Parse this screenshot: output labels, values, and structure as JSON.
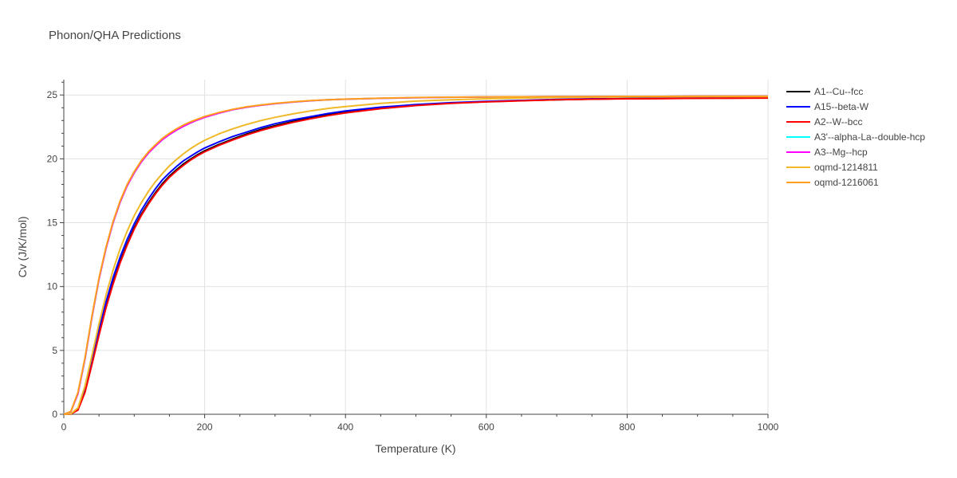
{
  "chart_data": {
    "type": "line",
    "title": "Phonon/QHA Predictions",
    "xlabel": "Temperature (K)",
    "ylabel": "Cv (J/K/mol)",
    "xlim": [
      0,
      1000
    ],
    "ylim": [
      0,
      26.2
    ],
    "xticks": [
      0,
      200,
      400,
      600,
      800,
      1000
    ],
    "yticks": [
      0,
      5,
      10,
      15,
      20,
      25
    ],
    "grid": true,
    "legend_position": "right",
    "x": [
      0,
      10,
      20,
      30,
      40,
      50,
      60,
      70,
      80,
      90,
      100,
      110,
      120,
      130,
      140,
      150,
      160,
      170,
      180,
      190,
      200,
      220,
      240,
      260,
      280,
      300,
      325,
      350,
      375,
      400,
      450,
      500,
      550,
      600,
      650,
      700,
      750,
      800,
      850,
      900,
      950,
      1000
    ],
    "series": [
      {
        "name": "A1--Cu--fcc",
        "color": "#000000",
        "values": [
          0,
          0.02,
          0.35,
          1.75,
          3.95,
          6.3,
          8.45,
          10.3,
          11.95,
          13.35,
          14.6,
          15.65,
          16.55,
          17.35,
          18.05,
          18.65,
          19.15,
          19.6,
          19.98,
          20.33,
          20.63,
          21.12,
          21.55,
          21.95,
          22.3,
          22.6,
          22.92,
          23.2,
          23.45,
          23.65,
          23.98,
          24.2,
          24.37,
          24.48,
          24.56,
          24.63,
          24.68,
          24.71,
          24.73,
          24.75,
          24.76,
          24.77
        ]
      },
      {
        "name": "A15--beta-W",
        "color": "#0000ff",
        "values": [
          0,
          0.03,
          0.42,
          1.95,
          4.2,
          6.6,
          8.8,
          10.7,
          12.3,
          13.7,
          14.9,
          15.95,
          16.85,
          17.65,
          18.35,
          18.9,
          19.4,
          19.85,
          20.2,
          20.55,
          20.85,
          21.32,
          21.75,
          22.1,
          22.45,
          22.75,
          23.05,
          23.3,
          23.55,
          23.75,
          24.05,
          24.25,
          24.4,
          24.5,
          24.58,
          24.65,
          24.7,
          24.73,
          24.75,
          24.77,
          24.78,
          24.79
        ]
      },
      {
        "name": "A2--W--bcc",
        "color": "#ff0000",
        "values": [
          0,
          0.02,
          0.33,
          1.7,
          3.9,
          6.2,
          8.35,
          10.2,
          11.85,
          13.25,
          14.5,
          15.55,
          16.45,
          17.25,
          17.95,
          18.55,
          19.05,
          19.5,
          19.9,
          20.25,
          20.55,
          21.05,
          21.48,
          21.88,
          22.22,
          22.52,
          22.85,
          23.13,
          23.38,
          23.6,
          23.93,
          24.17,
          24.34,
          24.46,
          24.55,
          24.62,
          24.67,
          24.7,
          24.72,
          24.74,
          24.75,
          24.76
        ]
      },
      {
        "name": "A3'--alpha-La--double-hcp",
        "color": "#00ffff",
        "values": [
          0,
          0.2,
          1.6,
          4.3,
          7.6,
          10.6,
          13.0,
          15.0,
          16.6,
          17.9,
          18.9,
          19.75,
          20.45,
          21.0,
          21.5,
          21.9,
          22.25,
          22.55,
          22.82,
          23.05,
          23.25,
          23.58,
          23.85,
          24.05,
          24.2,
          24.32,
          24.45,
          24.55,
          24.62,
          24.67,
          24.74,
          24.79,
          24.82,
          24.84,
          24.86,
          24.87,
          24.88,
          24.89,
          24.89,
          24.9,
          24.9,
          24.9
        ]
      },
      {
        "name": "A3--Mg--hcp",
        "color": "#ff00ff",
        "values": [
          0,
          0.2,
          1.6,
          4.3,
          7.6,
          10.6,
          13.0,
          15.0,
          16.6,
          17.9,
          18.9,
          19.75,
          20.45,
          21.0,
          21.5,
          21.9,
          22.25,
          22.55,
          22.82,
          23.05,
          23.25,
          23.58,
          23.85,
          24.05,
          24.2,
          24.32,
          24.45,
          24.55,
          24.62,
          24.67,
          24.74,
          24.79,
          24.82,
          24.84,
          24.86,
          24.87,
          24.88,
          24.89,
          24.89,
          24.9,
          24.9,
          24.9
        ]
      },
      {
        "name": "oqmd-1214811",
        "color": "#f0b928",
        "values": [
          0,
          0.03,
          0.5,
          2.2,
          4.6,
          7.1,
          9.35,
          11.3,
          12.95,
          14.35,
          15.55,
          16.55,
          17.45,
          18.2,
          18.85,
          19.45,
          19.95,
          20.4,
          20.8,
          21.15,
          21.45,
          21.95,
          22.35,
          22.7,
          23.0,
          23.25,
          23.52,
          23.75,
          23.95,
          24.1,
          24.35,
          24.52,
          24.63,
          24.7,
          24.76,
          24.8,
          24.83,
          24.85,
          24.86,
          24.87,
          24.88,
          24.88
        ]
      },
      {
        "name": "oqmd-1216061",
        "color": "#ff9f1c",
        "values": [
          0,
          0.22,
          1.7,
          4.4,
          7.7,
          10.7,
          13.1,
          15.1,
          16.7,
          18.0,
          19.0,
          19.85,
          20.55,
          21.1,
          21.6,
          22.0,
          22.35,
          22.65,
          22.9,
          23.12,
          23.32,
          23.63,
          23.88,
          24.08,
          24.22,
          24.34,
          24.46,
          24.56,
          24.63,
          24.68,
          24.75,
          24.8,
          24.83,
          24.85,
          24.86,
          24.87,
          24.88,
          24.89,
          24.89,
          24.9,
          24.9,
          24.9
        ]
      }
    ]
  }
}
